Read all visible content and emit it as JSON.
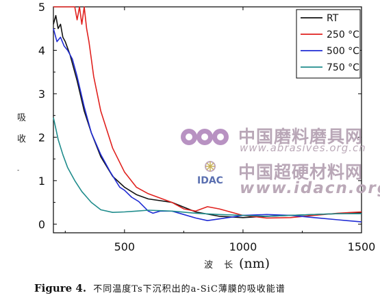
{
  "chart_data": {
    "type": "line",
    "xlabel": "波 长",
    "xlabel_unit": "(nm)",
    "ylabel_chars": [
      "吸",
      "收",
      "-"
    ],
    "xlim": [
      200,
      1500
    ],
    "ylim": [
      -0.2,
      5.0
    ],
    "xticks": [
      500,
      1000,
      1500
    ],
    "yticks": [
      0,
      1,
      2,
      3,
      4,
      5
    ],
    "legend_position": "top-right",
    "series": [
      {
        "name": "RT",
        "color": "#111111",
        "x": [
          200,
          210,
          220,
          230,
          240,
          250,
          270,
          300,
          330,
          360,
          400,
          450,
          500,
          550,
          600,
          700,
          800,
          900,
          1000,
          1100,
          1200,
          1300,
          1400,
          1500
        ],
        "y": [
          4.6,
          4.8,
          4.5,
          4.6,
          4.3,
          4.2,
          3.9,
          3.3,
          2.6,
          2.1,
          1.55,
          1.1,
          0.85,
          0.68,
          0.58,
          0.5,
          0.28,
          0.18,
          0.15,
          0.18,
          0.2,
          0.22,
          0.24,
          0.26
        ]
      },
      {
        "name": "250 °C",
        "color": "#e0201d",
        "x": [
          200,
          250,
          290,
          300,
          310,
          320,
          330,
          340,
          350,
          360,
          370,
          400,
          450,
          500,
          550,
          600,
          650,
          700,
          750,
          800,
          850,
          900,
          1000,
          1100,
          1200,
          1300,
          1400,
          1500
        ],
        "y": [
          5.0,
          5.0,
          5.0,
          4.7,
          5.0,
          4.6,
          5.0,
          4.5,
          4.2,
          3.8,
          3.4,
          2.6,
          1.75,
          1.2,
          0.85,
          0.7,
          0.6,
          0.5,
          0.35,
          0.3,
          0.4,
          0.35,
          0.2,
          0.14,
          0.15,
          0.2,
          0.25,
          0.28
        ]
      },
      {
        "name": "500 °C",
        "color": "#1f2bd4",
        "x": [
          200,
          215,
          230,
          245,
          260,
          280,
          300,
          330,
          360,
          400,
          440,
          480,
          500,
          530,
          560,
          600,
          620,
          650,
          700,
          750,
          800,
          850,
          900,
          950,
          1000,
          1100,
          1200,
          1300,
          1400,
          1500
        ],
        "y": [
          4.5,
          4.2,
          4.3,
          4.1,
          4.0,
          3.8,
          3.4,
          2.7,
          2.1,
          1.6,
          1.2,
          0.85,
          0.78,
          0.62,
          0.52,
          0.3,
          0.25,
          0.3,
          0.3,
          0.22,
          0.14,
          0.08,
          0.12,
          0.16,
          0.2,
          0.22,
          0.2,
          0.15,
          0.1,
          0.05
        ]
      },
      {
        "name": "750 °C",
        "color": "#1f8c8c",
        "x": [
          200,
          210,
          220,
          240,
          260,
          290,
          320,
          360,
          400,
          450,
          500,
          550,
          600,
          700,
          800,
          900,
          1000,
          1100,
          1200,
          1300,
          1400,
          1500
        ],
        "y": [
          2.45,
          2.2,
          1.95,
          1.6,
          1.3,
          1.0,
          0.75,
          0.5,
          0.33,
          0.27,
          0.28,
          0.3,
          0.32,
          0.3,
          0.25,
          0.22,
          0.2,
          0.18,
          0.2,
          0.22,
          0.24,
          0.24
        ]
      }
    ]
  },
  "watermark": {
    "line1": "中国磨料磨具网",
    "line1_url": "www.abrasives.org.cn",
    "logo2_text": "IDAC",
    "line2": "中国超硬材料网",
    "line2_url": "www.idacn.org"
  },
  "caption": {
    "label": "Figure 4.",
    "text": "不同温度Ts下沉积出的a-SiC薄膜的吸收能谱"
  }
}
